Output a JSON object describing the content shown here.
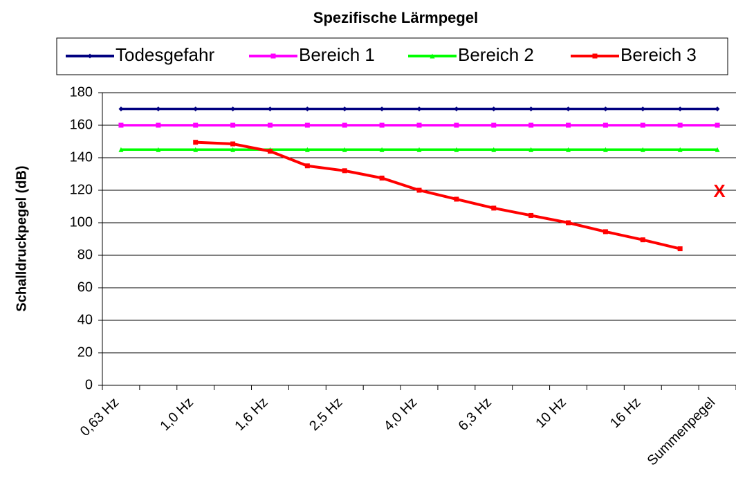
{
  "chart_data": {
    "type": "line",
    "title": "Spezifische Lärmpegel",
    "y_label": "Schalldruckpegel (dB)",
    "annotation": "X",
    "categories": [
      "0,63 Hz",
      null,
      "1,0 Hz",
      null,
      "1,6 Hz",
      null,
      "2,5 Hz",
      null,
      "4,0 Hz",
      null,
      "6,3 Hz",
      null,
      "10 Hz",
      null,
      "16 Hz",
      null,
      "Summenpegel"
    ],
    "series": [
      {
        "name": "Todesgefahr",
        "color": "#000080",
        "values": [
          170,
          170,
          170,
          170,
          170,
          170,
          170,
          170,
          170,
          170,
          170,
          170,
          170,
          170,
          170,
          170,
          170
        ]
      },
      {
        "name": "Bereich 1",
        "color": "#ff00ff",
        "values": [
          160,
          160,
          160,
          160,
          160,
          160,
          160,
          160,
          160,
          160,
          160,
          160,
          160,
          160,
          160,
          160,
          160
        ]
      },
      {
        "name": "Bereich 2",
        "color": "#00ff00",
        "values": [
          145,
          145,
          145,
          145,
          145,
          145,
          145,
          145,
          145,
          145,
          145,
          145,
          145,
          145,
          145,
          145,
          145
        ]
      },
      {
        "name": "Bereich 3",
        "color": "#ff0000",
        "values": [
          null,
          null,
          149.5,
          148.5,
          144,
          135,
          132,
          127.5,
          120,
          114.5,
          109,
          104.5,
          100,
          94.5,
          89.5,
          84,
          null
        ]
      }
    ],
    "ylim": [
      0,
      180
    ],
    "yticks": [
      0,
      20,
      40,
      60,
      80,
      100,
      120,
      140,
      160,
      180
    ],
    "grid": true
  }
}
